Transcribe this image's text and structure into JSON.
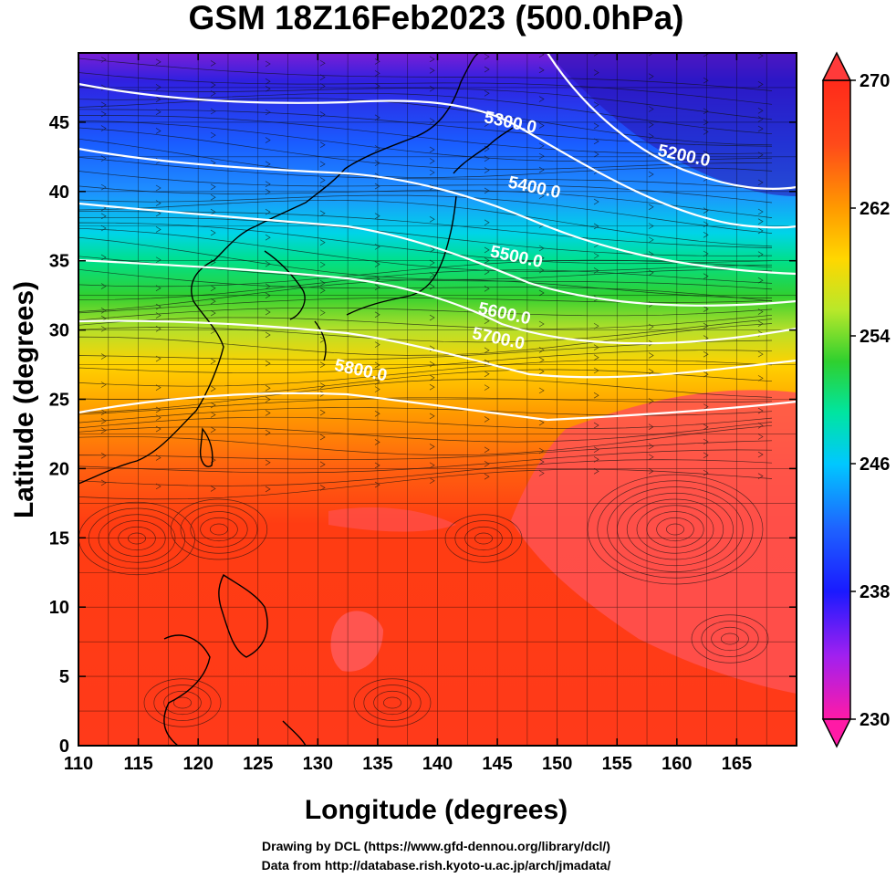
{
  "figure": {
    "title": "GSM 18Z16Feb2023 (500.0hPa)",
    "xlabel": "Longitude (degrees)",
    "ylabel": "Latitude  (degrees)",
    "credits": [
      "Drawing by DCL (https://www.gfd-dennou.org/library/dcl/)",
      "Data from http://database.rish.kyoto-u.ac.jp/arch/jmadata/"
    ]
  },
  "chart_data": {
    "type": "heatmap",
    "description_fields": "temperature shading (K) with geopotential height contours and wind streamlines",
    "xlim": [
      110,
      170
    ],
    "ylim": [
      0,
      50
    ],
    "xticks": [
      110,
      115,
      120,
      125,
      130,
      135,
      140,
      145,
      150,
      155,
      160,
      165
    ],
    "yticks": [
      0,
      5,
      10,
      15,
      20,
      25,
      30,
      35,
      40,
      45
    ],
    "colorbar": {
      "range": [
        230,
        270
      ],
      "ticks": [
        230,
        238,
        246,
        254,
        262,
        270
      ],
      "colors": [
        "#ff1aa6",
        "#a020f0",
        "#1a1aff",
        "#1e64ff",
        "#00c8ff",
        "#00e5a0",
        "#2fd02f",
        "#b8e82a",
        "#ffd700",
        "#ff9a00",
        "#ff4a1a",
        "#ff2a1a"
      ]
    },
    "contours": [
      {
        "level": "5200.0",
        "label_lon": 160.5,
        "label_lat": 42.2
      },
      {
        "level": "5300.0",
        "label_lon": 146,
        "label_lat": 44.6
      },
      {
        "level": "5400.0",
        "label_lon": 148,
        "label_lat": 39.9
      },
      {
        "level": "5500.0",
        "label_lon": 146.5,
        "label_lat": 34.9
      },
      {
        "level": "5600.0",
        "label_lon": 145.5,
        "label_lat": 30.8
      },
      {
        "level": "5700.0",
        "label_lon": 145,
        "label_lat": 29.0
      },
      {
        "level": "5800.0",
        "label_lon": 133.5,
        "label_lat": 26.7
      }
    ]
  }
}
